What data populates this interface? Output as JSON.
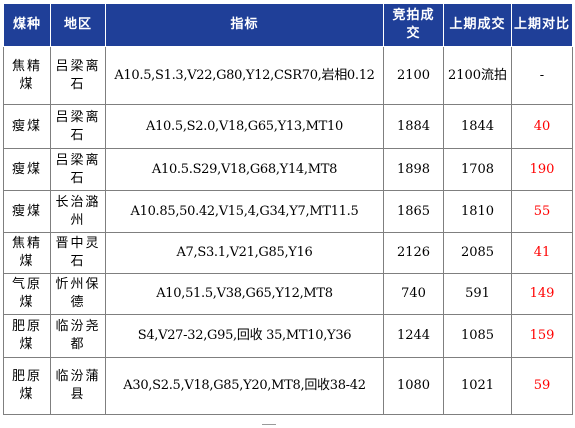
{
  "table": {
    "headers": {
      "coal_type": "煤种",
      "area": "地区",
      "spec": "指标",
      "deal_price": "竞拍成交",
      "prev_price": "上期成交",
      "diff": "上期对比"
    },
    "rows": [
      {
        "coal_type": "焦精煤",
        "area": "吕梁离石",
        "spec": "A10.5,S1.3,V22,G80,Y12,CSR70,岩相0.12",
        "deal_price": "2100",
        "prev_price": "2100流拍",
        "diff": "-"
      },
      {
        "coal_type": "瘦煤",
        "area": "吕梁离石",
        "spec": "A10.5,S2.0,V18,G65,Y13,MT10",
        "deal_price": "1884",
        "prev_price": "1844",
        "diff": "40"
      },
      {
        "coal_type": "瘦煤",
        "area": "吕梁离石",
        "spec": "A10.5.S29,V18,G68,Y14,MT8",
        "deal_price": "1898",
        "prev_price": "1708",
        "diff": "190"
      },
      {
        "coal_type": "瘦煤",
        "area": "长治潞州",
        "spec": "A10.85,50.42,V15,4,G34,Y7,MT11.5",
        "deal_price": "1865",
        "prev_price": "1810",
        "diff": "55"
      },
      {
        "coal_type": "焦精煤",
        "area": "晋中灵石",
        "spec": "A7,S3.1,V21,G85,Y16",
        "deal_price": "2126",
        "prev_price": "2085",
        "diff": "41"
      },
      {
        "coal_type": "气原煤",
        "area": "忻州保德",
        "spec": "A10,51.5,V38,G65,Y12,MT8",
        "deal_price": "740",
        "prev_price": "591",
        "diff": "149"
      },
      {
        "coal_type": "肥原煤",
        "area": "临汾尧都",
        "spec": "S4,V27-32,G95,回收 35,MT10,Y36",
        "deal_price": "1244",
        "prev_price": "1085",
        "diff": "159"
      },
      {
        "coal_type": "肥原煤",
        "area": "临汾蒲县",
        "spec": "A30,S2.5,V18,G85,Y20,MT8,回收38-42",
        "deal_price": "1080",
        "prev_price": "1021",
        "diff": "59"
      }
    ]
  }
}
